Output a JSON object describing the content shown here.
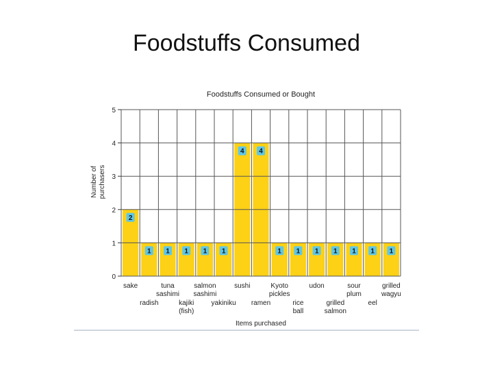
{
  "slide": {
    "title": "Foodstuffs Consumed"
  },
  "chart_data": {
    "type": "bar",
    "title": "Foodstuffs Consumed or Bought",
    "xlabel": "Items purchased",
    "ylabel": [
      "Number of",
      "purchasers"
    ],
    "ylim": [
      0,
      5
    ],
    "yticks": [
      0,
      1,
      2,
      3,
      4,
      5
    ],
    "grid": true,
    "categories": [
      [
        "sake"
      ],
      [
        "radish"
      ],
      [
        "tuna",
        "sashimi"
      ],
      [
        "kajiki",
        "(fish)"
      ],
      [
        "salmon",
        "sashimi"
      ],
      [
        "yakiniku"
      ],
      [
        "sushi"
      ],
      [
        "ramen"
      ],
      [
        "Kyoto",
        "pickles"
      ],
      [
        "rice",
        "ball"
      ],
      [
        "udon"
      ],
      [
        "grilled",
        "salmon"
      ],
      [
        "sour",
        "plum"
      ],
      [
        "eel"
      ],
      [
        "grilled",
        "wagyu"
      ]
    ],
    "values": [
      2,
      1,
      1,
      1,
      1,
      1,
      4,
      4,
      1,
      1,
      1,
      1,
      1,
      1,
      1
    ],
    "colors": {
      "bar": "#fcd116",
      "label_bg": "#5fc6e6",
      "grid": "#555555"
    }
  }
}
